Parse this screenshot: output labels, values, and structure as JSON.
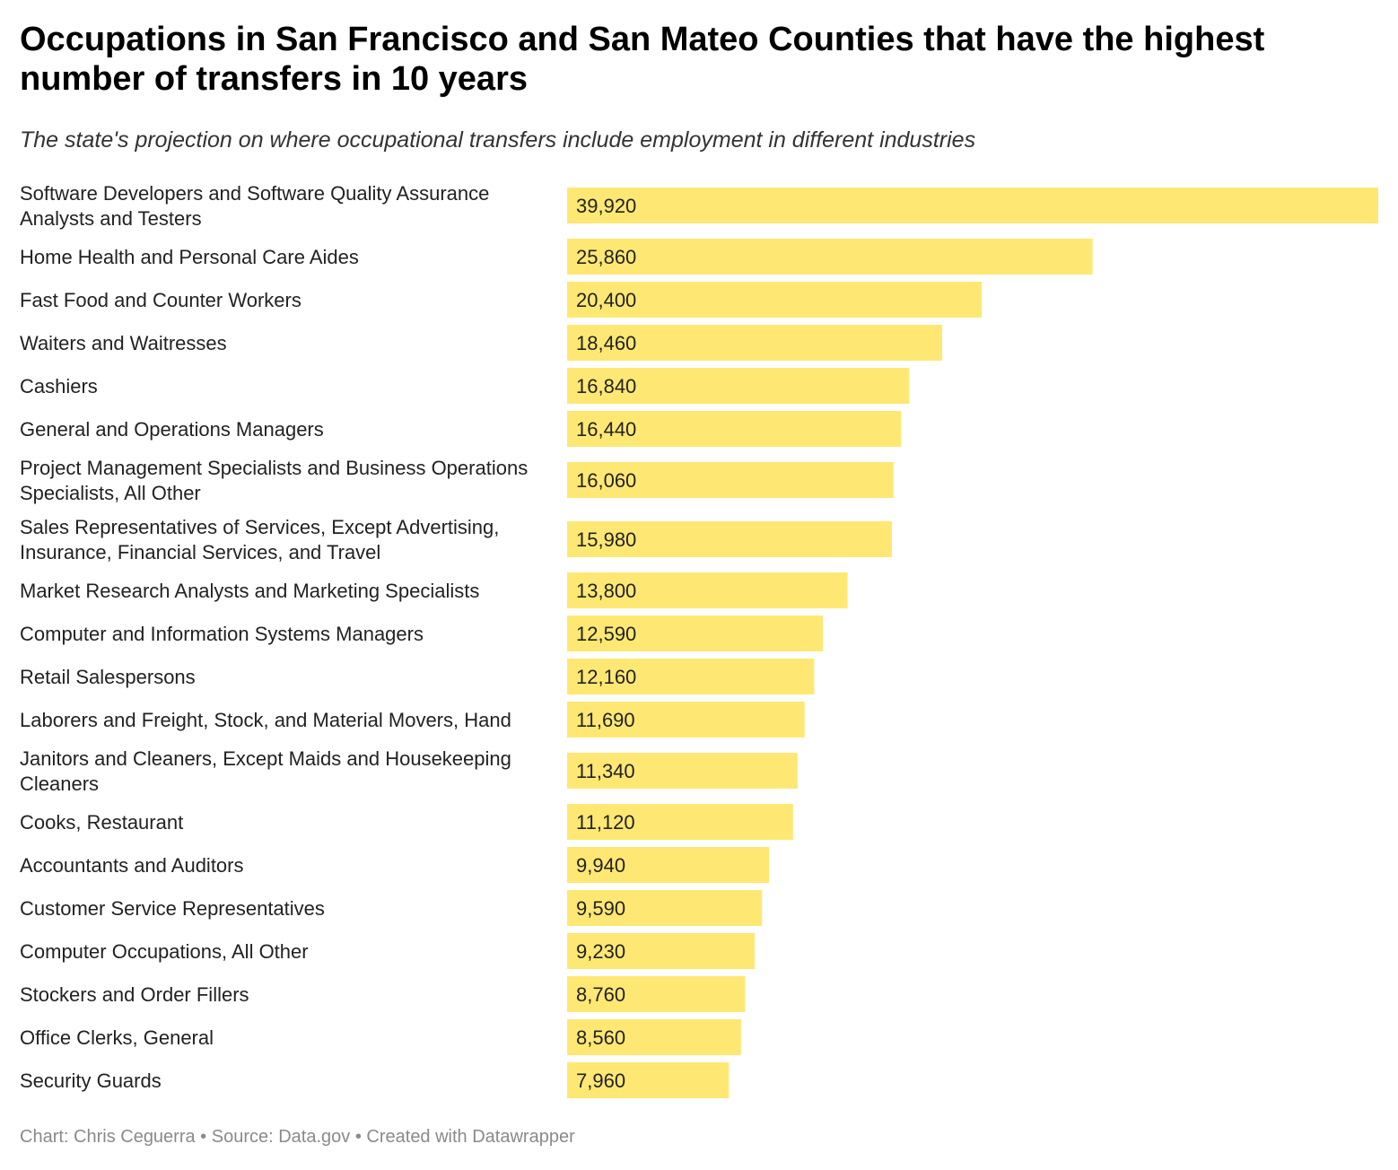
{
  "title": "Occupations in San Francisco and San Mateo Counties that have the highest number of transfers in 10 years",
  "subtitle": "The state's projection on where occupational transfers include employment in different industries",
  "footer": {
    "chart_credit": "Chart: Chris Ceguerra",
    "separator": " • ",
    "source": "Source: Data.gov",
    "created_with": "Created with Datawrapper"
  },
  "colors": {
    "bar": "#fee873",
    "text": "#222222",
    "footer": "#8a8a8a"
  },
  "chart_data": {
    "type": "bar",
    "orientation": "horizontal",
    "categories": [
      "Software Developers and Software Quality Assurance Analysts and Testers",
      "Home Health and Personal Care Aides",
      "Fast Food and Counter Workers",
      "Waiters and Waitresses",
      "Cashiers",
      "General and Operations Managers",
      "Project Management Specialists and Business Operations Specialists, All Other",
      "Sales Representatives of Services, Except Advertising, Insurance, Financial Services, and Travel",
      "Market Research Analysts and Marketing Specialists",
      "Computer and Information Systems Managers",
      "Retail Salespersons",
      "Laborers and Freight, Stock, and Material Movers, Hand",
      "Janitors and Cleaners, Except Maids and Housekeeping Cleaners",
      "Cooks, Restaurant",
      "Accountants and Auditors",
      "Customer Service Representatives",
      "Computer Occupations, All Other",
      "Stockers and Order Fillers",
      "Office Clerks, General",
      "Security Guards"
    ],
    "values": [
      39920,
      25860,
      20400,
      18460,
      16840,
      16440,
      16060,
      15980,
      13800,
      12590,
      12160,
      11690,
      11340,
      11120,
      9940,
      9590,
      9230,
      8760,
      8560,
      7960
    ],
    "value_labels": [
      "39,920",
      "25,860",
      "20,400",
      "18,460",
      "16,840",
      "16,440",
      "16,060",
      "15,980",
      "13,800",
      "12,590",
      "12,160",
      "11,690",
      "11,340",
      "11,120",
      "9,940",
      "9,590",
      "9,230",
      "8,760",
      "8,560",
      "7,960"
    ],
    "title": "Occupations in San Francisco and San Mateo Counties that have the highest number of transfers in 10 years",
    "subtitle": "The state's projection on where occupational transfers include employment in different industries",
    "xlim": [
      0,
      39920
    ],
    "grid": false,
    "legend": "none"
  }
}
